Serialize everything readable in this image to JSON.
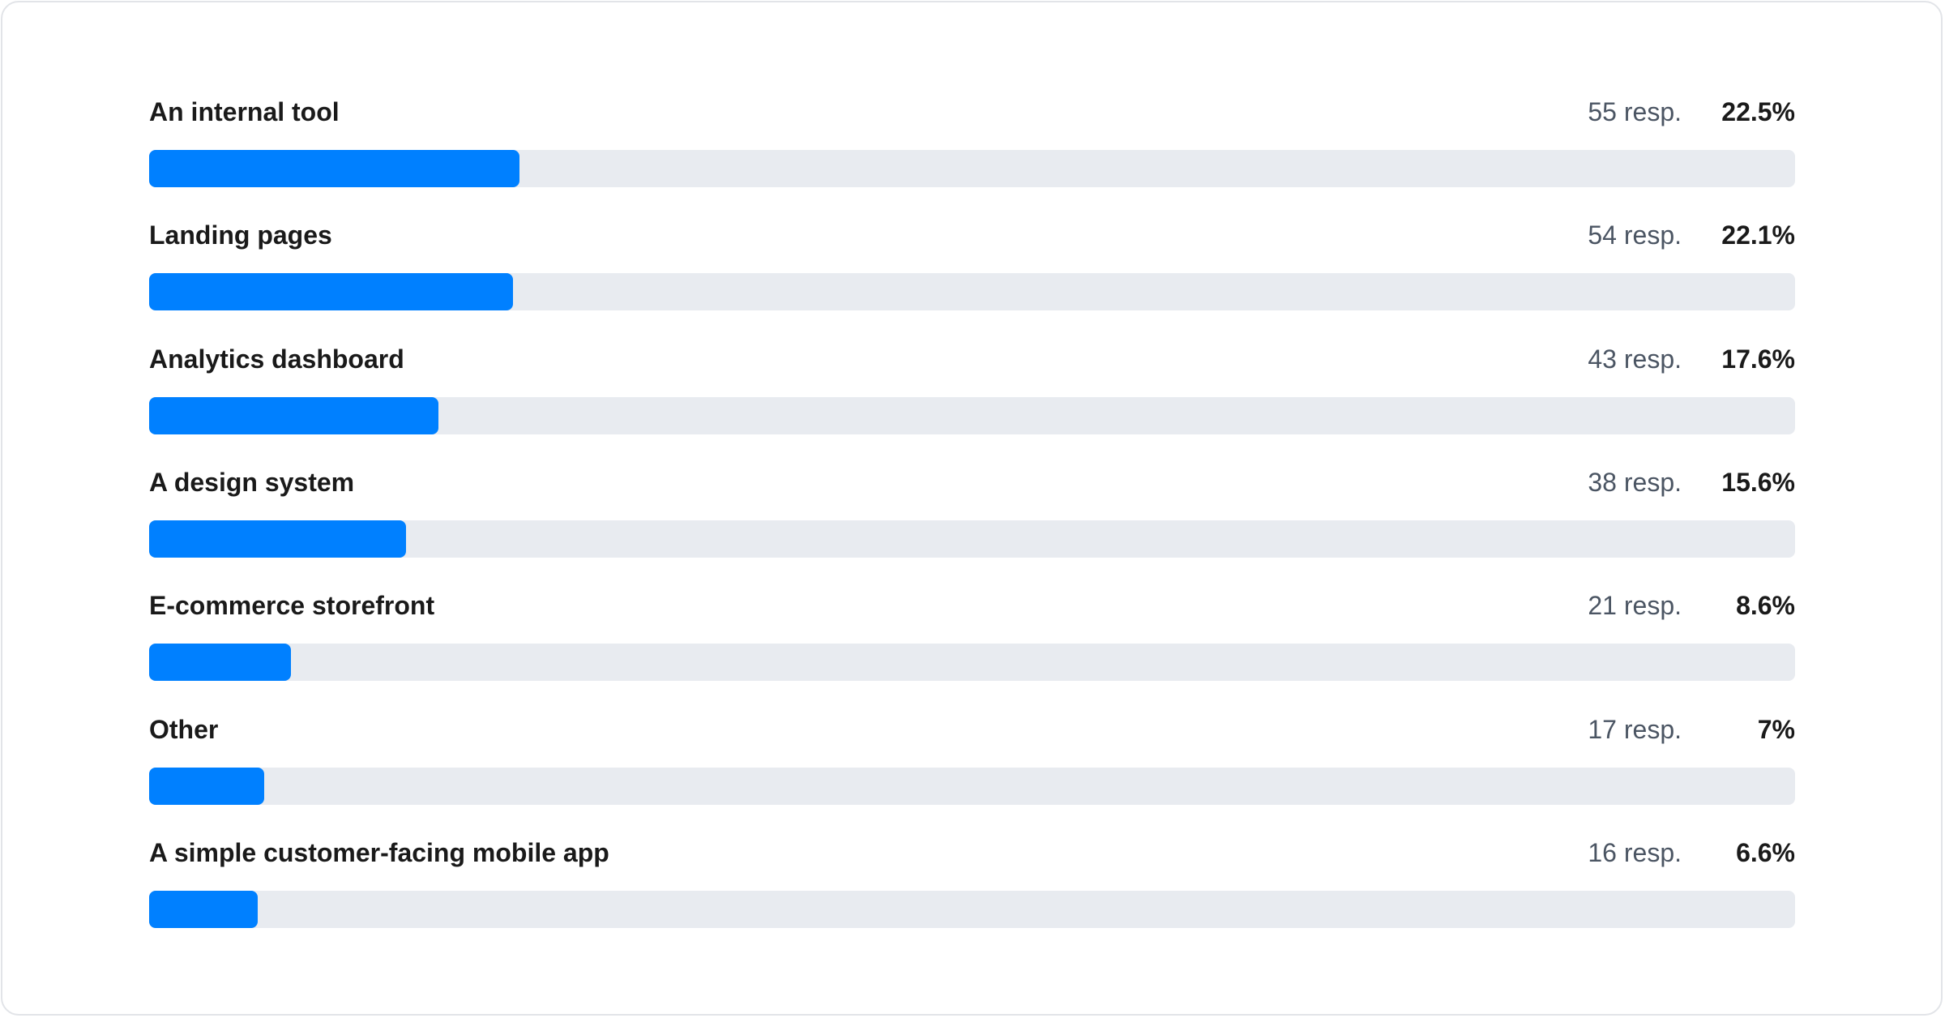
{
  "chart_data": {
    "type": "bar",
    "orientation": "horizontal",
    "categories": [
      "An internal tool",
      "Landing pages",
      "Analytics dashboard",
      "A design system",
      "E-commerce storefront",
      "Other",
      "A simple customer-facing mobile app"
    ],
    "responses": [
      "55 resp.",
      "54 resp.",
      "43 resp.",
      "38 resp.",
      "21 resp.",
      "17 resp.",
      "16 resp."
    ],
    "percent_labels": [
      "22.5%",
      "22.1%",
      "17.6%",
      "15.6%",
      "8.6%",
      "7%",
      "6.6%"
    ],
    "values": [
      22.5,
      22.1,
      17.6,
      15.6,
      8.6,
      7,
      6.6
    ],
    "xlim": [
      0,
      100
    ],
    "grid": false,
    "colors": {
      "fill": "#0080ff",
      "track": "#e8ebf0"
    }
  }
}
